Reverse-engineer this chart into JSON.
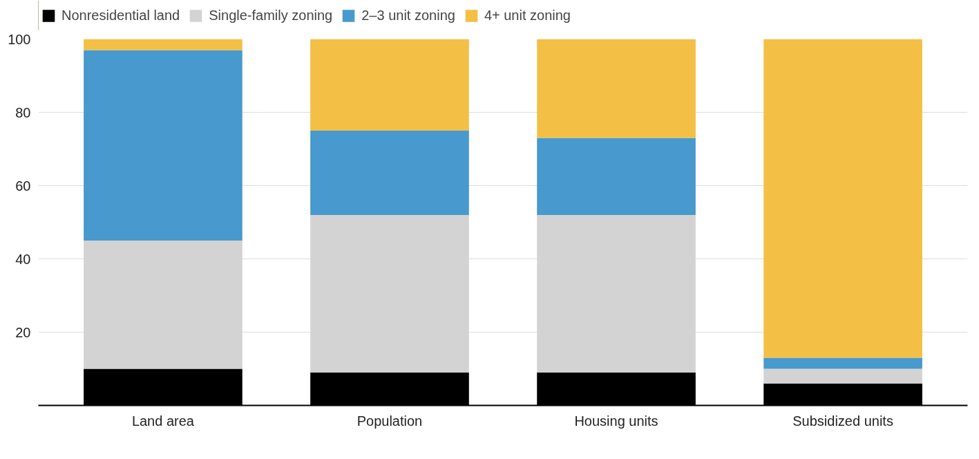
{
  "chart_data": {
    "type": "bar",
    "stacked": true,
    "categories": [
      "Land area",
      "Population",
      "Housing units",
      "Subsidized units"
    ],
    "series": [
      {
        "name": "Nonresidential land",
        "color": "#000000",
        "values": [
          10,
          9,
          9,
          6
        ]
      },
      {
        "name": "Single-family zoning",
        "color": "#d3d3d3",
        "values": [
          35,
          43,
          43,
          4
        ]
      },
      {
        "name": "2–3 unit zoning",
        "color": "#4899cd",
        "values": [
          52,
          23,
          21,
          3
        ]
      },
      {
        "name": "4+ unit zoning",
        "color": "#f3bf45",
        "values": [
          3,
          25,
          27,
          87
        ]
      }
    ],
    "ylim": [
      0,
      100
    ],
    "yticks": [
      20,
      40,
      60,
      80,
      100
    ],
    "grid": "y",
    "legend": "top left"
  }
}
